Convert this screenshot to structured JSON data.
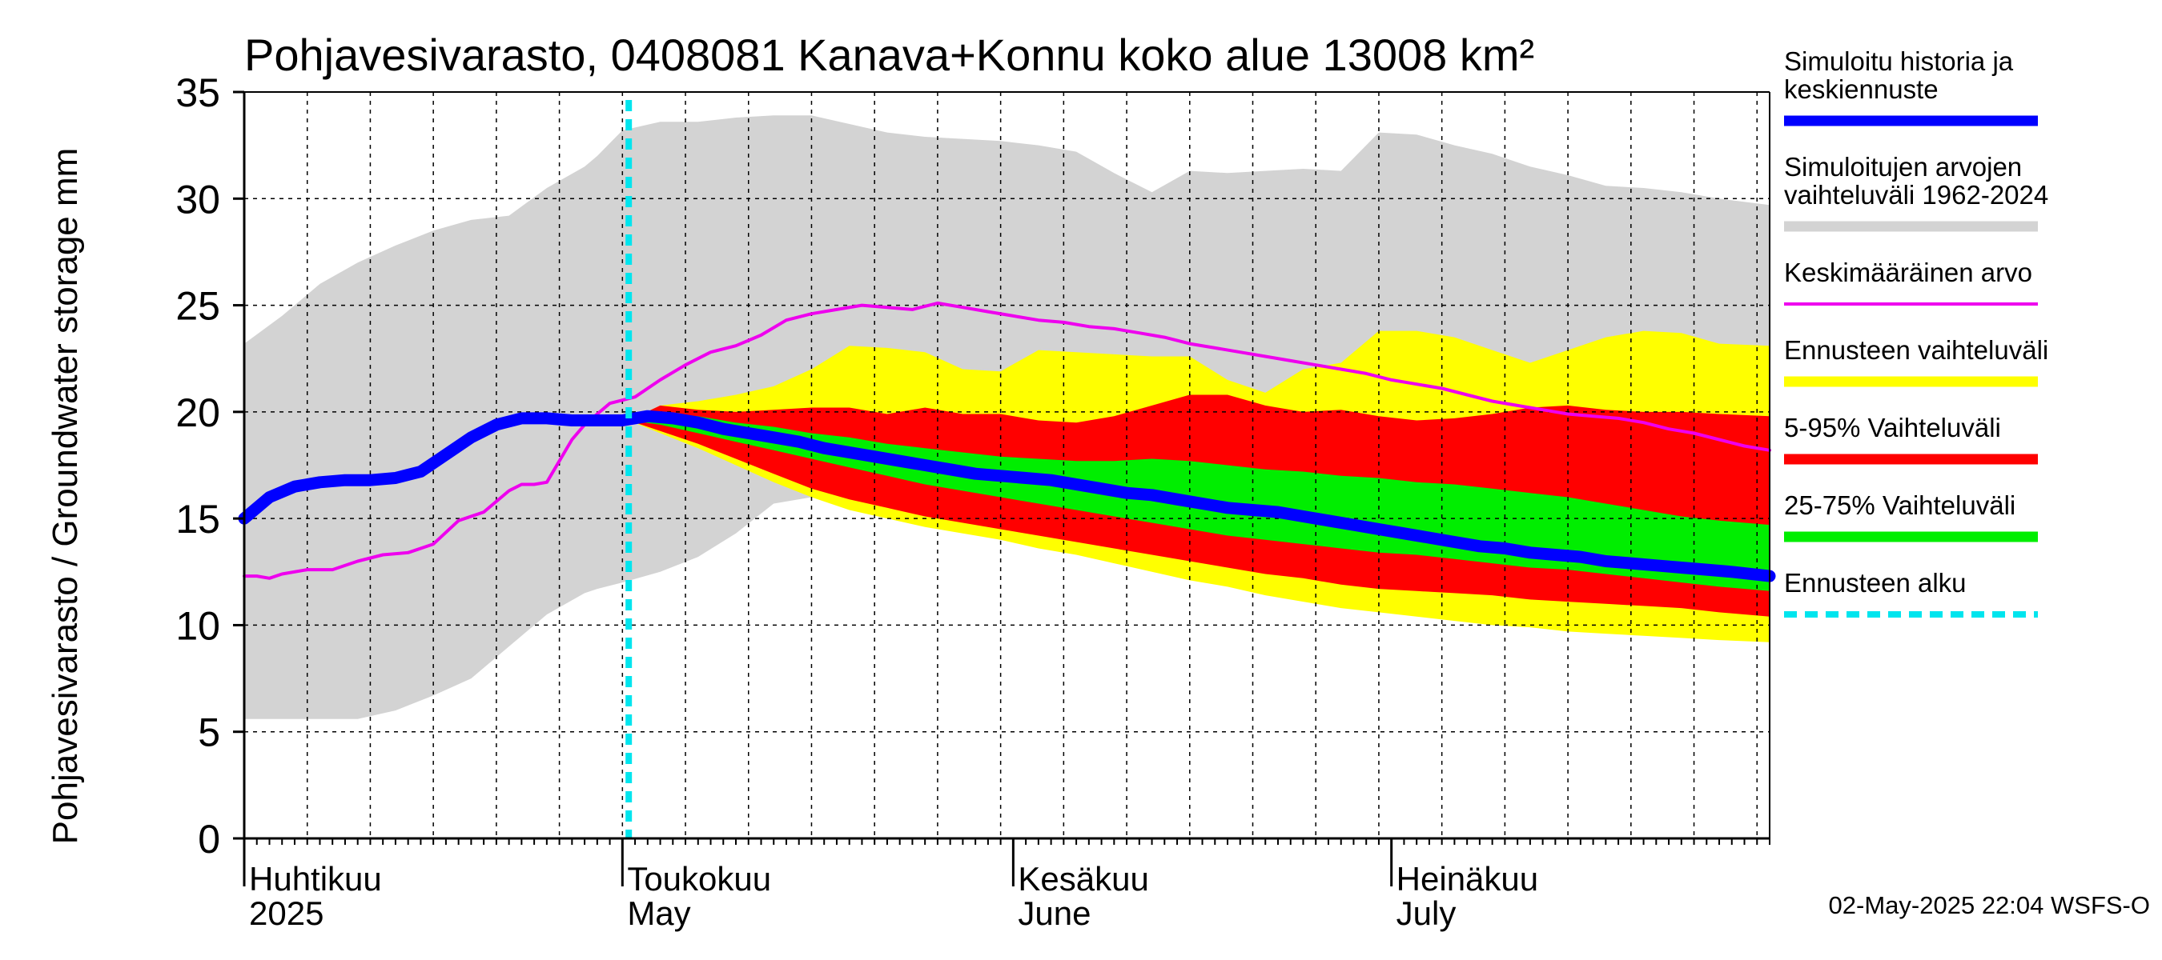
{
  "chart_data": {
    "type": "area",
    "title": "Pohjavesivarasto, 0408081 Kanava+Konnu koko alue 13008 km²",
    "ylabel": "Pohjavesivarasto / Groundwater storage   mm",
    "ylim": [
      0,
      35
    ],
    "yticks": [
      0,
      5,
      10,
      15,
      20,
      25,
      30,
      35
    ],
    "xlim_days": [
      0,
      121
    ],
    "months": [
      {
        "fi": "Huhtikuu",
        "en": "2025",
        "day": 0
      },
      {
        "fi": "Toukokuu",
        "en": "May",
        "day": 30
      },
      {
        "fi": "Kesäkuu",
        "en": "June",
        "day": 61
      },
      {
        "fi": "Heinäkuu",
        "en": "July",
        "day": 91
      }
    ],
    "forecast_start_day": 30.5,
    "series": [
      {
        "name": "Simuloitujen arvojen vaihteluväli 1962-2024",
        "color": "#d3d3d3",
        "kind": "band",
        "x": [
          0,
          3,
          6,
          9,
          12,
          15,
          18,
          21,
          24,
          27,
          28,
          30,
          33,
          36,
          39,
          42,
          45,
          48,
          51,
          54,
          57,
          60,
          63,
          66,
          69,
          72,
          75,
          78,
          81,
          84,
          87,
          90,
          93,
          96,
          99,
          102,
          105,
          108,
          111,
          114,
          117,
          121
        ],
        "upper": [
          23.2,
          24.5,
          26.0,
          27.0,
          27.8,
          28.5,
          29.0,
          29.2,
          30.5,
          31.5,
          32.0,
          33.2,
          33.6,
          33.6,
          33.8,
          33.9,
          33.9,
          33.5,
          33.1,
          32.9,
          32.8,
          32.7,
          32.5,
          32.2,
          31.2,
          30.3,
          31.3,
          31.2,
          31.3,
          31.4,
          31.3,
          33.1,
          33.0,
          32.5,
          32.1,
          31.5,
          31.1,
          30.6,
          30.5,
          30.3,
          30.0,
          29.7
        ],
        "lower": [
          5.6,
          5.6,
          5.6,
          5.6,
          6.0,
          6.7,
          7.5,
          9.0,
          10.5,
          11.5,
          11.7,
          12.0,
          12.5,
          13.2,
          14.3,
          15.7,
          16.0,
          15.9,
          15.7,
          15.3,
          15.3,
          15.5,
          15.1,
          15.1,
          14.9,
          14.9,
          14.9,
          14.9,
          14.9,
          14.9,
          14.9,
          14.9,
          14.9,
          14.9,
          14.9,
          14.9,
          14.9,
          14.9,
          14.9,
          14.9,
          14.9,
          14.9
        ]
      },
      {
        "name": "Ennusteen vaihteluväli",
        "color": "#ffff00",
        "kind": "band",
        "x": [
          30.5,
          33,
          36,
          39,
          42,
          45,
          48,
          51,
          54,
          57,
          60,
          63,
          66,
          69,
          72,
          75,
          78,
          81,
          84,
          87,
          90,
          93,
          96,
          99,
          102,
          105,
          108,
          111,
          114,
          117,
          121
        ],
        "upper": [
          19.6,
          20.3,
          20.5,
          20.8,
          21.2,
          22.0,
          23.1,
          23.0,
          22.8,
          22.0,
          21.9,
          22.9,
          22.8,
          22.7,
          22.6,
          22.6,
          21.5,
          20.9,
          22.0,
          22.3,
          23.8,
          23.8,
          23.5,
          22.9,
          22.3,
          22.9,
          23.5,
          23.8,
          23.7,
          23.2,
          23.1
        ],
        "lower": [
          19.6,
          19.0,
          18.3,
          17.5,
          16.7,
          16.0,
          15.4,
          15.0,
          14.6,
          14.3,
          14.0,
          13.6,
          13.3,
          12.9,
          12.5,
          12.1,
          11.8,
          11.4,
          11.1,
          10.8,
          10.6,
          10.4,
          10.2,
          10.0,
          9.9,
          9.7,
          9.6,
          9.5,
          9.4,
          9.3,
          9.2
        ]
      },
      {
        "name": "5-95% Vaihteluväli",
        "color": "#ff0000",
        "kind": "band",
        "x": [
          30.5,
          33,
          36,
          39,
          42,
          45,
          48,
          51,
          54,
          57,
          60,
          63,
          66,
          69,
          72,
          75,
          78,
          81,
          84,
          87,
          90,
          93,
          96,
          99,
          102,
          105,
          108,
          111,
          114,
          117,
          121
        ],
        "upper": [
          19.6,
          20.3,
          20.1,
          20.0,
          20.1,
          20.2,
          20.2,
          19.9,
          20.2,
          19.9,
          19.9,
          19.6,
          19.5,
          19.8,
          20.3,
          20.8,
          20.8,
          20.3,
          20.0,
          20.1,
          19.8,
          19.6,
          19.7,
          19.9,
          20.2,
          20.3,
          20.1,
          20.0,
          20.0,
          19.9,
          19.8
        ],
        "lower": [
          19.6,
          19.1,
          18.5,
          17.8,
          17.1,
          16.4,
          15.9,
          15.5,
          15.1,
          14.8,
          14.5,
          14.2,
          13.9,
          13.6,
          13.3,
          13.0,
          12.7,
          12.4,
          12.2,
          11.9,
          11.7,
          11.6,
          11.5,
          11.4,
          11.2,
          11.1,
          11.0,
          10.9,
          10.8,
          10.6,
          10.4
        ]
      },
      {
        "name": "25-75% Vaihteluväli",
        "color": "#00ee00",
        "kind": "band",
        "x": [
          30.5,
          33,
          36,
          39,
          42,
          45,
          48,
          51,
          54,
          57,
          60,
          63,
          66,
          69,
          72,
          75,
          78,
          81,
          84,
          87,
          90,
          93,
          96,
          99,
          102,
          105,
          108,
          111,
          114,
          117,
          121
        ],
        "upper": [
          19.6,
          19.9,
          19.8,
          19.5,
          19.3,
          19.0,
          18.8,
          18.5,
          18.3,
          18.1,
          17.9,
          17.8,
          17.7,
          17.7,
          17.8,
          17.7,
          17.5,
          17.3,
          17.2,
          17.0,
          16.9,
          16.7,
          16.6,
          16.4,
          16.2,
          16.0,
          15.7,
          15.4,
          15.1,
          14.9,
          14.7
        ],
        "lower": [
          19.6,
          19.4,
          19.0,
          18.6,
          18.2,
          17.8,
          17.4,
          17.0,
          16.6,
          16.3,
          16.0,
          15.7,
          15.4,
          15.1,
          14.8,
          14.5,
          14.2,
          14.0,
          13.8,
          13.6,
          13.4,
          13.3,
          13.1,
          12.9,
          12.7,
          12.6,
          12.4,
          12.2,
          12.0,
          11.8,
          11.6
        ]
      },
      {
        "name": "Keskimääräinen arvo",
        "color": "#ee00ee",
        "kind": "line",
        "x": [
          0,
          1,
          2,
          3,
          5,
          7,
          9,
          11,
          13,
          15,
          17,
          19,
          21,
          22,
          23,
          24,
          26,
          27,
          29,
          31,
          33,
          35,
          37,
          39,
          41,
          43,
          45,
          47,
          49,
          51,
          53,
          55,
          57,
          59,
          61,
          63,
          65,
          67,
          69,
          71,
          73,
          75,
          77,
          79,
          81,
          83,
          85,
          87,
          89,
          91,
          93,
          95,
          97,
          99,
          101,
          103,
          105,
          107,
          109,
          111,
          113,
          115,
          117,
          119,
          121
        ],
        "y": [
          12.3,
          12.3,
          12.2,
          12.4,
          12.6,
          12.6,
          13.0,
          13.3,
          13.4,
          13.8,
          14.9,
          15.3,
          16.3,
          16.6,
          16.6,
          16.7,
          18.7,
          19.4,
          20.4,
          20.7,
          21.5,
          22.2,
          22.8,
          23.1,
          23.6,
          24.3,
          24.6,
          24.8,
          25.0,
          24.9,
          24.8,
          25.1,
          24.9,
          24.7,
          24.5,
          24.3,
          24.2,
          24.0,
          23.9,
          23.7,
          23.5,
          23.2,
          23.0,
          22.8,
          22.6,
          22.4,
          22.2,
          22.0,
          21.8,
          21.5,
          21.3,
          21.1,
          20.8,
          20.5,
          20.3,
          20.1,
          19.9,
          19.8,
          19.7,
          19.5,
          19.2,
          19.0,
          18.7,
          18.4,
          18.2
        ]
      },
      {
        "name": "Simuloitu historia ja keskiennuste",
        "color": "#0000ff",
        "kind": "line",
        "x": [
          0,
          2,
          4,
          6,
          8,
          10,
          12,
          14,
          16,
          18,
          20,
          22,
          24,
          26,
          28,
          30,
          32,
          34,
          36,
          38,
          40,
          42,
          44,
          46,
          48,
          50,
          52,
          54,
          56,
          58,
          60,
          62,
          64,
          66,
          68,
          70,
          72,
          74,
          76,
          78,
          80,
          82,
          84,
          86,
          88,
          90,
          92,
          94,
          96,
          98,
          100,
          102,
          104,
          106,
          108,
          110,
          112,
          114,
          116,
          118,
          121
        ],
        "y": [
          15.0,
          16.0,
          16.5,
          16.7,
          16.8,
          16.8,
          16.9,
          17.2,
          18.0,
          18.8,
          19.4,
          19.7,
          19.7,
          19.6,
          19.6,
          19.6,
          19.8,
          19.7,
          19.5,
          19.2,
          19.0,
          18.8,
          18.6,
          18.3,
          18.1,
          17.9,
          17.7,
          17.5,
          17.3,
          17.1,
          17.0,
          16.9,
          16.8,
          16.6,
          16.4,
          16.2,
          16.1,
          15.9,
          15.7,
          15.5,
          15.4,
          15.3,
          15.1,
          14.9,
          14.7,
          14.5,
          14.3,
          14.1,
          13.9,
          13.7,
          13.6,
          13.4,
          13.3,
          13.2,
          13.0,
          12.9,
          12.8,
          12.7,
          12.6,
          12.5,
          12.3
        ]
      }
    ]
  },
  "legend": {
    "items": [
      {
        "lines": [
          "Simuloitu historia ja",
          "keskiennuste"
        ],
        "color": "#0000ff",
        "style": "thick"
      },
      {
        "lines": [
          "Simuloitujen arvojen",
          "vaihteluväli 1962-2024"
        ],
        "color": "#d3d3d3",
        "style": "thick"
      },
      {
        "lines": [
          "Keskimääräinen arvo"
        ],
        "color": "#ee00ee",
        "style": "thin"
      },
      {
        "lines": [
          "Ennusteen vaihteluväli"
        ],
        "color": "#ffff00",
        "style": "thick"
      },
      {
        "lines": [
          "5-95% Vaihteluväli"
        ],
        "color": "#ff0000",
        "style": "thick"
      },
      {
        "lines": [
          "25-75% Vaihteluväli"
        ],
        "color": "#00ee00",
        "style": "thick"
      },
      {
        "lines": [
          "Ennusteen alku"
        ],
        "color": "#00e5ee",
        "style": "dashed"
      }
    ]
  },
  "footer": {
    "timestamp": "02-May-2025 22:04 WSFS-O"
  }
}
